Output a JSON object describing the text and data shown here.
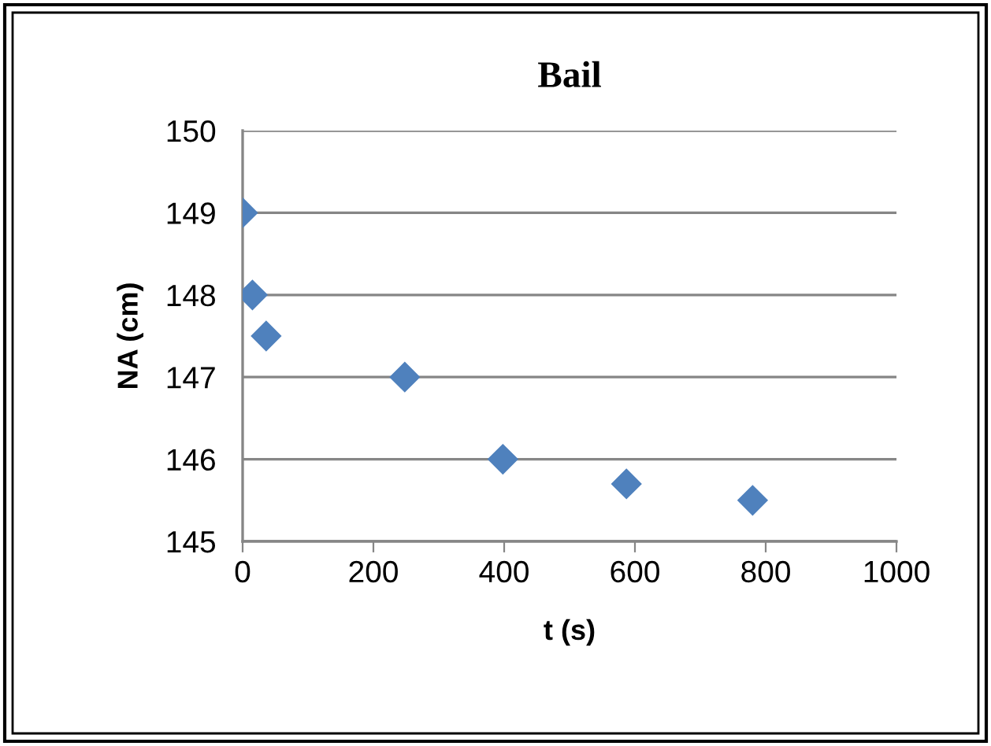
{
  "chart_data": {
    "type": "scatter",
    "title": "Bail",
    "xlabel": "t (s)",
    "ylabel": "NA (cm)",
    "x": [
      0,
      15,
      36,
      248,
      398,
      587,
      780
    ],
    "series": [
      {
        "color": "#4f81bd",
        "values": [
          149,
          148,
          147.5,
          147,
          146,
          145.7,
          145.5
        ]
      }
    ],
    "marker": "diamond",
    "xlim": [
      0,
      1000
    ],
    "xticks": [
      0,
      200,
      400,
      600,
      800,
      1000
    ],
    "ylim": [
      145,
      150
    ],
    "yticks": [
      145,
      146,
      147,
      148,
      149,
      150
    ],
    "grid": "y",
    "legend": false
  }
}
